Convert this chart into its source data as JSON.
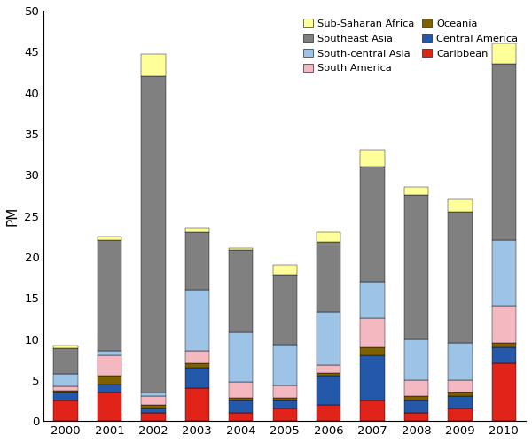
{
  "years": [
    2000,
    2001,
    2002,
    2003,
    2004,
    2005,
    2006,
    2007,
    2008,
    2009,
    2010
  ],
  "regions": [
    "Caribbean",
    "Central America",
    "Oceania",
    "South America",
    "South-central Asia",
    "Southeast Asia",
    "Sub-Saharan Africa"
  ],
  "colors": {
    "Caribbean": "#e2231a",
    "Central America": "#2458a8",
    "Oceania": "#7f6000",
    "South America": "#f4b8c1",
    "South-central Asia": "#9dc3e6",
    "Southeast Asia": "#808080",
    "Sub-Saharan Africa": "#ffff99"
  },
  "data": {
    "Caribbean": [
      2.5,
      3.5,
      1.0,
      4.0,
      1.0,
      1.5,
      2.0,
      2.5,
      1.0,
      1.5,
      7.0
    ],
    "Central America": [
      1.0,
      1.0,
      0.5,
      2.5,
      1.5,
      1.0,
      3.5,
      5.5,
      1.5,
      1.5,
      2.0
    ],
    "Oceania": [
      0.2,
      1.0,
      0.5,
      0.5,
      0.3,
      0.3,
      0.3,
      1.0,
      0.5,
      0.5,
      0.5
    ],
    "South America": [
      0.5,
      2.5,
      1.0,
      1.5,
      2.0,
      1.5,
      1.0,
      3.5,
      2.0,
      1.5,
      4.5
    ],
    "South-central Asia": [
      1.5,
      0.5,
      0.5,
      7.5,
      6.0,
      5.0,
      6.5,
      4.5,
      5.0,
      4.5,
      8.0
    ],
    "Southeast Asia": [
      3.2,
      13.5,
      38.5,
      7.0,
      10.0,
      8.5,
      8.5,
      14.0,
      17.5,
      16.0,
      21.5
    ],
    "Sub-Saharan Africa": [
      0.3,
      0.5,
      2.7,
      0.5,
      0.3,
      1.2,
      1.2,
      2.0,
      1.0,
      1.5,
      2.5
    ]
  },
  "ylabel": "PM",
  "ylim": [
    0,
    50
  ],
  "yticks": [
    0,
    5,
    10,
    15,
    20,
    25,
    30,
    35,
    40,
    45,
    50
  ],
  "legend_order": [
    "Sub-Saharan Africa",
    "Southeast Asia",
    "South-central Asia",
    "South America",
    "Oceania",
    "Central America",
    "Caribbean"
  ],
  "background_color": "#ffffff"
}
